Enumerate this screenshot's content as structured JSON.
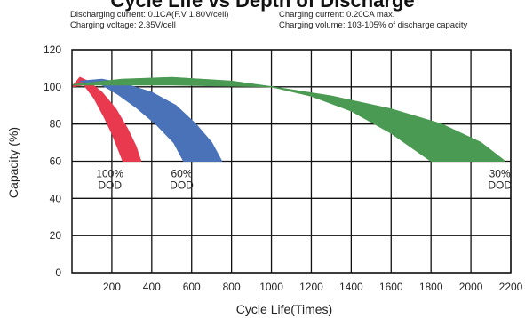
{
  "chart_data": {
    "type": "area",
    "title": "Cycle Life vs Depth of Discharge",
    "notes": {
      "top_left_1": "Discharging current: 0.1CA(F.V 1.80V/cell)",
      "top_left_2": "Charging voltage: 2.35V/cell",
      "top_right_1": "Charging current: 0.20CA max.",
      "top_right_2": "Charging volume: 103-105% of discharge capacity"
    },
    "xlabel": "Cycle Life(Times)",
    "ylabel": "Capacity (%)",
    "xlim": [
      0,
      2200
    ],
    "ylim": [
      0,
      120
    ],
    "x_ticks": [
      "200",
      "400",
      "600",
      "800",
      "1000",
      "1200",
      "1400",
      "1600",
      "1800",
      "2000",
      "2200"
    ],
    "y_ticks": [
      "0",
      "20",
      "40",
      "60",
      "80",
      "100",
      "120"
    ],
    "grid": true,
    "series": [
      {
        "name": "100% DOD",
        "color": "#e8394e",
        "label_lines": [
          "100%",
          "DOD"
        ],
        "label_at": [
          190,
          58
        ],
        "upper": [
          [
            0,
            100
          ],
          [
            40,
            105
          ],
          [
            80,
            103
          ],
          [
            150,
            97
          ],
          [
            220,
            88
          ],
          [
            280,
            77
          ],
          [
            320,
            68
          ],
          [
            345,
            60
          ]
        ],
        "lower": [
          [
            0,
            100
          ],
          [
            60,
            101
          ],
          [
            110,
            94
          ],
          [
            160,
            84
          ],
          [
            200,
            75
          ],
          [
            230,
            67
          ],
          [
            255,
            60
          ]
        ]
      },
      {
        "name": "60% DOD",
        "color": "#4a72b8",
        "label_lines": [
          "60%",
          "DOD"
        ],
        "label_at": [
          550,
          58
        ],
        "upper": [
          [
            40,
            103
          ],
          [
            150,
            104
          ],
          [
            250,
            102
          ],
          [
            400,
            97
          ],
          [
            520,
            90
          ],
          [
            620,
            80
          ],
          [
            700,
            70
          ],
          [
            750,
            60
          ]
        ],
        "lower": [
          [
            40,
            103
          ],
          [
            150,
            101
          ],
          [
            230,
            96
          ],
          [
            320,
            89
          ],
          [
            420,
            80
          ],
          [
            510,
            70
          ],
          [
            560,
            60
          ]
        ]
      },
      {
        "name": "30% DOD",
        "color": "#4b9a53",
        "label_lines": [
          "30%",
          "DOD"
        ],
        "label_at": [
          2145,
          58
        ],
        "upper": [
          [
            0,
            101
          ],
          [
            250,
            104
          ],
          [
            500,
            105
          ],
          [
            800,
            103
          ],
          [
            1000,
            100
          ],
          [
            1300,
            95
          ],
          [
            1600,
            88
          ],
          [
            1850,
            80
          ],
          [
            2050,
            70
          ],
          [
            2170,
            60
          ]
        ],
        "lower": [
          [
            0,
            101
          ],
          [
            500,
            101
          ],
          [
            1000,
            100
          ],
          [
            1200,
            95
          ],
          [
            1400,
            87
          ],
          [
            1600,
            75
          ],
          [
            1800,
            60
          ]
        ]
      }
    ]
  }
}
